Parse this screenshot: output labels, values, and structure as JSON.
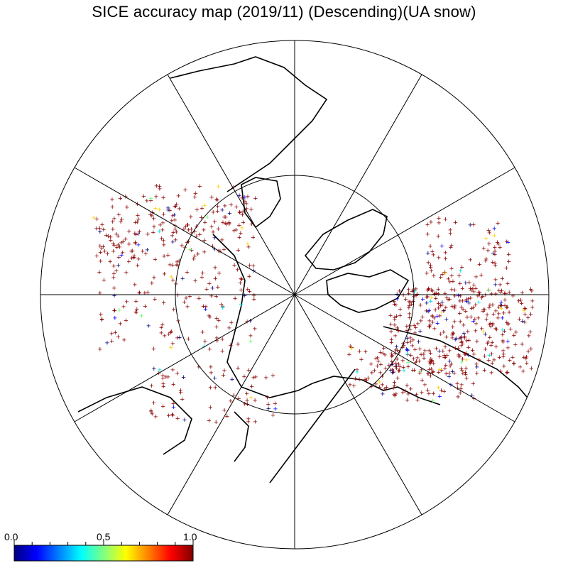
{
  "title": "SICE accuracy map (2019/11) (Descending)(UA snow)",
  "projection": "north-polar-stereographic",
  "graticule": {
    "meridian_spacing_deg": 30,
    "parallels_deg": [
      60
    ]
  },
  "colorbar": {
    "min_label": "0.0",
    "mid_label": "0.5",
    "max_label": "1.0",
    "min": 0.0,
    "max": 1.0,
    "colormap": "jet",
    "stops": [
      "#00007f",
      "#0000ff",
      "#0080ff",
      "#00ffff",
      "#80ff80",
      "#ffff00",
      "#ff8000",
      "#ff0000",
      "#7f0000"
    ]
  },
  "colors": {
    "land_outline": "#000000",
    "dominant_marker": "#8b0000"
  },
  "marker_style": "plus"
}
